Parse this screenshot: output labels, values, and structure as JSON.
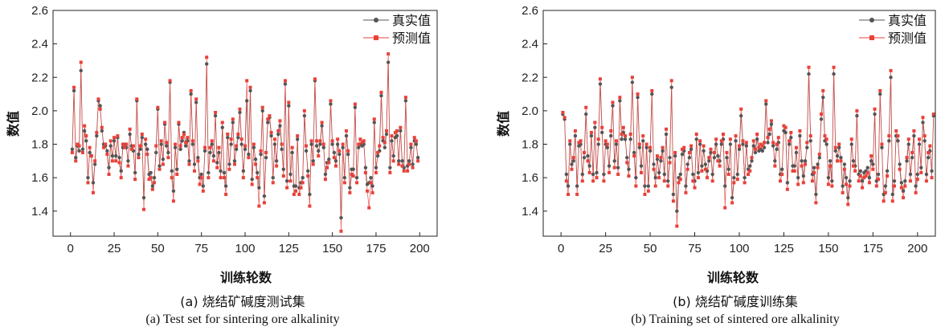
{
  "colors": {
    "actual": "#555555",
    "predicted": "#e8413a",
    "axis": "#222222"
  },
  "chart_data": [
    {
      "type": "line",
      "panel": "a",
      "caption_cn": "(a) 烧结矿碱度测试集",
      "caption_en": "(a) Test set for sintering ore alkalinity",
      "xlabel": "训练轮数",
      "ylabel": "数值",
      "xlim": [
        -10,
        210
      ],
      "ylim": [
        1.25,
        2.6
      ],
      "xticks": [
        0,
        25,
        50,
        75,
        100,
        125,
        150,
        175,
        200
      ],
      "yticks": [
        1.4,
        1.6,
        1.8,
        2.0,
        2.2,
        2.4,
        2.6
      ],
      "ytick_labels": [
        "1.4",
        "1.6",
        "1.8",
        "2.0",
        "2.2",
        "2.4",
        "2.6"
      ],
      "legend_position": "top-right",
      "series": [
        {
          "name": "真实值",
          "marker": "circle",
          "x_start": 1,
          "x_step": 1,
          "values": [
            1.77,
            2.12,
            1.72,
            1.79,
            1.76,
            2.24,
            1.77,
            1.88,
            1.82,
            1.6,
            1.75,
            1.73,
            1.57,
            1.68,
            1.85,
            2.06,
            2.03,
            1.88,
            1.8,
            1.79,
            1.76,
            1.66,
            1.79,
            1.73,
            1.82,
            1.73,
            1.84,
            1.72,
            1.64,
            1.78,
            1.8,
            1.78,
            1.7,
            1.86,
            1.79,
            1.76,
            1.63,
            2.06,
            1.74,
            1.77,
            1.84,
            1.48,
            1.8,
            1.77,
            1.62,
            1.63,
            1.55,
            1.6,
            1.75,
            2.01,
            1.67,
            1.8,
            1.71,
            1.92,
            1.79,
            1.75,
            2.17,
            1.64,
            1.52,
            1.78,
            1.65,
            1.92,
            1.77,
            1.82,
            1.87,
            1.79,
            1.82,
            1.7,
            2.1,
            1.8,
            1.68,
            2.05,
            1.72,
            1.6,
            1.62,
            1.55,
            1.76,
            2.28,
            1.63,
            1.75,
            1.8,
            1.73,
            1.97,
            1.69,
            1.75,
            1.64,
            1.9,
            1.63,
            1.55,
            1.84,
            1.68,
            1.8,
            1.93,
            1.7,
            1.77,
            1.84,
            1.99,
            1.8,
            1.64,
            1.77,
            2.06,
            1.74,
            2.12,
            1.59,
            1.78,
            1.71,
            1.63,
            1.54,
            1.74,
            2.0,
            1.49,
            1.72,
            1.93,
            1.96,
            1.85,
            1.6,
            1.8,
            1.7,
            1.86,
            1.91,
            1.77,
            1.65,
            2.16,
            1.58,
            2.03,
            1.62,
            1.75,
            1.55,
            1.55,
            1.83,
            1.54,
            1.57,
            1.6,
            1.97,
            1.76,
            1.64,
            1.5,
            1.8,
            1.7,
            2.18,
            1.79,
            1.76,
            1.8,
            1.91,
            1.78,
            1.62,
            1.69,
            1.71,
            2.04,
            1.8,
            1.75,
            1.7,
            1.8,
            1.74,
            1.36,
            1.78,
            1.6,
            1.85,
            1.74,
            1.54,
            1.65,
            1.65,
            2.02,
            1.6,
            1.78,
            1.8,
            1.79,
            1.8,
            1.66,
            1.56,
            1.57,
            1.6,
            1.55,
            1.93,
            1.66,
            1.73,
            1.76,
            2.09,
            1.82,
            1.78,
            1.86,
            2.29,
            1.66,
            1.82,
            1.73,
            1.84,
            1.85,
            1.7,
            1.88,
            1.7,
            1.66,
            2.06,
            1.67,
            1.7,
            1.78,
            1.68,
            1.82,
            1.8,
            1.72
          ]
        },
        {
          "name": "预测值",
          "marker": "square",
          "x_start": 1,
          "x_step": 1,
          "values": [
            1.75,
            2.14,
            1.7,
            1.8,
            1.79,
            2.29,
            1.75,
            1.91,
            1.85,
            1.57,
            1.78,
            1.73,
            1.51,
            1.7,
            1.87,
            2.07,
            2.01,
            1.9,
            1.78,
            1.8,
            1.74,
            1.62,
            1.82,
            1.7,
            1.84,
            1.7,
            1.85,
            1.69,
            1.6,
            1.8,
            1.78,
            1.8,
            1.67,
            1.89,
            1.77,
            1.79,
            1.59,
            2.07,
            1.72,
            1.79,
            1.86,
            1.41,
            1.83,
            1.74,
            1.59,
            1.6,
            1.53,
            1.57,
            1.79,
            2.02,
            1.65,
            1.82,
            1.68,
            1.93,
            1.81,
            1.72,
            2.18,
            1.6,
            1.46,
            1.8,
            1.62,
            1.93,
            1.79,
            1.84,
            1.86,
            1.81,
            1.84,
            1.68,
            2.12,
            1.82,
            1.64,
            2.07,
            1.7,
            1.56,
            1.6,
            1.52,
            1.78,
            2.32,
            1.6,
            1.78,
            1.82,
            1.7,
            1.99,
            1.66,
            1.78,
            1.6,
            1.93,
            1.6,
            1.5,
            1.86,
            1.65,
            1.83,
            1.95,
            1.68,
            1.79,
            1.86,
            2.01,
            1.83,
            1.6,
            1.79,
            2.18,
            1.72,
            2.14,
            1.56,
            1.8,
            1.68,
            1.6,
            1.43,
            1.76,
            2.02,
            1.45,
            1.75,
            1.95,
            1.97,
            1.87,
            1.57,
            1.83,
            1.67,
            1.88,
            1.94,
            1.8,
            1.61,
            2.18,
            1.54,
            2.05,
            1.58,
            1.78,
            1.5,
            1.52,
            1.85,
            1.5,
            1.54,
            1.57,
            2.0,
            1.79,
            1.61,
            1.43,
            1.82,
            1.68,
            2.19,
            1.82,
            1.73,
            1.82,
            1.93,
            1.8,
            1.59,
            1.66,
            1.69,
            2.06,
            1.82,
            1.72,
            1.67,
            1.83,
            1.76,
            1.28,
            1.8,
            1.57,
            1.88,
            1.76,
            1.51,
            1.62,
            1.61,
            2.04,
            1.57,
            1.8,
            1.83,
            1.81,
            1.82,
            1.63,
            1.52,
            1.42,
            1.57,
            1.51,
            1.95,
            1.63,
            1.75,
            1.79,
            2.11,
            1.84,
            1.81,
            1.88,
            2.34,
            1.63,
            1.85,
            1.7,
            1.87,
            1.88,
            1.68,
            1.9,
            1.67,
            1.64,
            2.08,
            1.64,
            1.68,
            1.8,
            1.66,
            1.84,
            1.82,
            1.7
          ]
        }
      ]
    },
    {
      "type": "line",
      "panel": "b",
      "caption_cn": "(b) 烧结矿碱度训练集",
      "caption_en": "(b) Training set of sintered ore alkalinity",
      "xlabel": "训练轮数",
      "ylabel": "数值",
      "xlim": [
        -10,
        210
      ],
      "ylim": [
        1.25,
        2.6
      ],
      "xticks": [
        0,
        25,
        50,
        75,
        100,
        125,
        150,
        175,
        200
      ],
      "yticks": [
        1.4,
        1.6,
        1.8,
        2.0,
        2.2,
        2.4,
        2.6
      ],
      "ytick_labels": [
        "1.4",
        "1.6",
        "1.8",
        "2.0",
        "2.2",
        "2.4",
        "2.6"
      ],
      "legend_position": "top-right",
      "series": [
        {
          "name": "真实值",
          "marker": "circle",
          "x_start": 1,
          "x_step": 1,
          "values": [
            1.98,
            1.95,
            1.62,
            1.55,
            1.8,
            1.68,
            1.7,
            1.85,
            1.55,
            1.79,
            1.8,
            1.62,
            1.72,
            1.98,
            1.73,
            1.67,
            1.85,
            1.62,
            1.9,
            1.63,
            1.8,
            2.16,
            1.87,
            1.62,
            1.8,
            1.78,
            1.67,
            1.85,
            2.03,
            1.7,
            1.8,
            1.66,
            2.06,
            1.83,
            1.87,
            1.83,
            1.72,
            1.65,
            1.83,
            2.17,
            1.75,
            1.6,
            2.08,
            1.78,
            1.67,
            1.82,
            1.55,
            1.78,
            1.55,
            1.76,
            2.1,
            1.68,
            1.6,
            1.71,
            1.63,
            1.7,
            1.76,
            1.62,
            1.86,
            1.58,
            1.72,
            2.14,
            1.5,
            1.73,
            1.4,
            1.6,
            1.62,
            1.74,
            1.76,
            1.55,
            1.68,
            1.72,
            1.77,
            1.62,
            1.58,
            1.83,
            1.63,
            1.8,
            1.67,
            1.76,
            1.68,
            1.64,
            1.7,
            1.75,
            1.62,
            1.72,
            1.8,
            1.73,
            1.7,
            1.8,
            1.83,
            1.55,
            1.72,
            1.65,
            1.8,
            1.48,
            1.6,
            1.82,
            1.62,
            1.77,
            1.97,
            1.8,
            1.6,
            1.79,
            1.65,
            1.67,
            1.7,
            1.79,
            1.75,
            1.83,
            1.76,
            1.77,
            1.76,
            1.78,
            2.04,
            1.81,
            1.86,
            1.92,
            1.79,
            1.7,
            1.77,
            1.81,
            1.62,
            1.65,
            1.88,
            1.87,
            1.57,
            1.8,
            1.84,
            1.67,
            1.67,
            1.75,
            1.6,
            1.85,
            1.7,
            1.61,
            1.7,
            1.78,
            2.22,
            1.82,
            1.62,
            1.66,
            1.5,
            1.68,
            1.72,
            1.95,
            2.08,
            1.82,
            1.8,
            1.6,
            1.7,
            1.58,
            2.22,
            1.76,
            1.73,
            1.78,
            1.72,
            1.55,
            1.68,
            1.6,
            1.48,
            1.58,
            1.8,
            1.7,
            1.67,
            1.97,
            1.62,
            1.64,
            1.58,
            1.63,
            1.64,
            1.66,
            1.6,
            1.7,
            1.68,
            1.98,
            1.58,
            1.62,
            2.1,
            1.78,
            1.5,
            1.55,
            1.64,
            1.82,
            2.2,
            1.5,
            1.58,
            1.85,
            1.82,
            1.68,
            1.57,
            1.52,
            1.58,
            1.7,
            1.8,
            1.62,
            1.72,
            1.85,
            1.55,
            1.62,
            1.8,
            1.66,
            1.93,
            1.82,
            1.62,
            1.72,
            1.76,
            1.64,
            1.97
          ]
        },
        {
          "name": "预测值",
          "marker": "square",
          "x_start": 1,
          "x_step": 1,
          "values": [
            1.99,
            1.96,
            1.58,
            1.5,
            1.82,
            1.65,
            1.72,
            1.88,
            1.5,
            1.81,
            1.82,
            1.58,
            1.75,
            2.02,
            1.7,
            1.63,
            1.87,
            1.58,
            1.93,
            1.6,
            1.83,
            2.19,
            1.9,
            1.58,
            1.82,
            1.8,
            1.63,
            1.88,
            2.05,
            1.66,
            1.82,
            1.62,
            2.08,
            1.86,
            1.9,
            1.85,
            1.69,
            1.61,
            1.86,
            2.2,
            1.73,
            1.55,
            2.1,
            1.8,
            1.63,
            1.85,
            1.5,
            1.8,
            1.52,
            1.78,
            2.12,
            1.65,
            1.55,
            1.73,
            1.6,
            1.72,
            1.78,
            1.58,
            1.89,
            1.55,
            1.69,
            2.18,
            1.46,
            1.75,
            1.31,
            1.57,
            1.59,
            1.77,
            1.78,
            1.51,
            1.65,
            1.75,
            1.79,
            1.58,
            1.54,
            1.86,
            1.6,
            1.82,
            1.64,
            1.79,
            1.65,
            1.6,
            1.72,
            1.77,
            1.58,
            1.75,
            1.83,
            1.7,
            1.67,
            1.82,
            1.86,
            1.42,
            1.75,
            1.62,
            1.83,
            1.45,
            1.57,
            1.85,
            1.59,
            1.79,
            2.01,
            1.82,
            1.57,
            1.81,
            1.62,
            1.64,
            1.72,
            1.82,
            1.77,
            1.86,
            1.78,
            1.8,
            1.79,
            1.81,
            2.06,
            1.84,
            1.89,
            1.94,
            1.81,
            1.67,
            1.8,
            1.84,
            1.58,
            1.62,
            1.91,
            1.9,
            1.53,
            1.82,
            1.87,
            1.64,
            1.64,
            1.78,
            1.56,
            1.88,
            1.67,
            1.57,
            1.68,
            1.81,
            2.26,
            1.85,
            1.58,
            1.63,
            1.45,
            1.66,
            1.74,
            1.98,
            2.12,
            1.85,
            1.83,
            1.56,
            1.67,
            1.55,
            2.26,
            1.78,
            1.7,
            1.8,
            1.7,
            1.51,
            1.65,
            1.56,
            1.44,
            1.55,
            1.83,
            1.67,
            1.64,
            2.0,
            1.58,
            1.61,
            1.54,
            1.6,
            1.61,
            1.63,
            1.57,
            1.73,
            1.65,
            2.01,
            1.55,
            1.59,
            2.12,
            1.8,
            1.46,
            1.51,
            1.61,
            1.85,
            2.24,
            1.46,
            1.55,
            1.88,
            1.85,
            1.65,
            1.54,
            1.48,
            1.55,
            1.72,
            1.83,
            1.58,
            1.75,
            1.88,
            1.51,
            1.59,
            1.83,
            1.63,
            1.96,
            1.85,
            1.58,
            1.75,
            1.79,
            1.6,
            1.98
          ]
        }
      ]
    }
  ]
}
